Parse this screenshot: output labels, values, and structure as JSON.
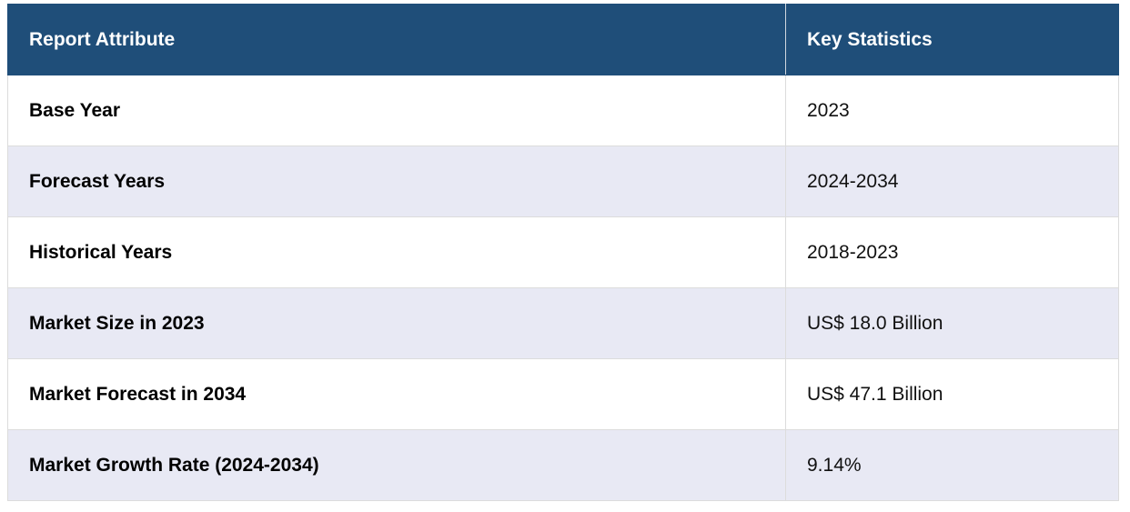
{
  "table": {
    "header": [
      "Report Attribute",
      "Key Statistics"
    ],
    "rows": [
      [
        "Base Year",
        "2023"
      ],
      [
        "Forecast Years",
        "2024-2034"
      ],
      [
        "Historical Years",
        "2018-2023"
      ],
      [
        "Market Size in 2023",
        "US$ 18.0 Billion"
      ],
      [
        "Market Forecast in 2034",
        "US$ 47.1 Billion"
      ],
      [
        "Market Growth Rate (2024-2034)",
        "9.14%"
      ]
    ]
  }
}
